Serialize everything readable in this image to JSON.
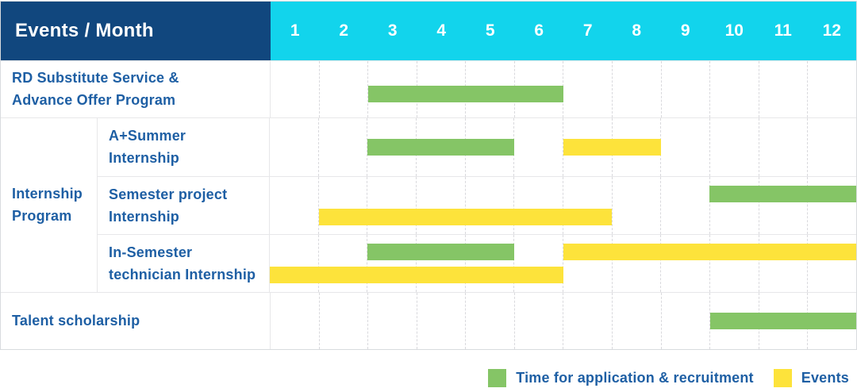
{
  "header": {
    "title": "Events / Month",
    "months": [
      "1",
      "2",
      "3",
      "4",
      "5",
      "6",
      "7",
      "8",
      "9",
      "10",
      "11",
      "12"
    ]
  },
  "group": {
    "label_lines": [
      "Internship",
      "Program"
    ]
  },
  "rows": [
    {
      "name": "rd-substitute-service",
      "label_lines": [
        "RD Substitute Service &",
        "Advance Offer Program"
      ],
      "bars": [
        {
          "color": "green",
          "start": 3,
          "end": 6,
          "lane": "mid-low"
        }
      ]
    },
    {
      "name": "a-plus-summer-internship",
      "label_lines": [
        "A+Summer",
        "Internship"
      ],
      "bars": [
        {
          "color": "green",
          "start": 3,
          "end": 5,
          "lane": "mid"
        },
        {
          "color": "yellow",
          "start": 7,
          "end": 8,
          "lane": "mid"
        }
      ]
    },
    {
      "name": "semester-project-internship",
      "label_lines": [
        "Semester project",
        "Internship"
      ],
      "bars": [
        {
          "color": "green",
          "start": 10,
          "end": 12,
          "lane": "top"
        },
        {
          "color": "yellow",
          "start": 2,
          "end": 7,
          "lane": "bottom"
        }
      ]
    },
    {
      "name": "in-semester-technician-internship",
      "label_lines": [
        "In-Semester",
        "technician Internship"
      ],
      "bars": [
        {
          "color": "green",
          "start": 3,
          "end": 5,
          "lane": "top"
        },
        {
          "color": "yellow",
          "start": 7,
          "end": 12,
          "lane": "top"
        },
        {
          "color": "yellow",
          "start": 1,
          "end": 6,
          "lane": "bottom"
        }
      ]
    },
    {
      "name": "talent-scholarship",
      "label_lines": [
        "Talent scholarship"
      ],
      "bars": [
        {
          "color": "green",
          "start": 10,
          "end": 12,
          "lane": "mid"
        }
      ]
    }
  ],
  "legend": {
    "items": [
      {
        "swatch": "green",
        "label": "Time for application & recruitment"
      },
      {
        "swatch": "yellow",
        "label": "Events"
      }
    ]
  },
  "colors": {
    "navy": "#11477E",
    "cyan": "#12D4EC",
    "green": "#85C566",
    "yellow": "#FDE33B",
    "labelBlue": "#1E5FA4"
  },
  "chart_data": {
    "type": "bar",
    "subtype": "gantt-schedule",
    "title": "Events / Month",
    "x": {
      "label": "Month",
      "ticks": [
        1,
        2,
        3,
        4,
        5,
        6,
        7,
        8,
        9,
        10,
        11,
        12
      ],
      "range": [
        1,
        12
      ]
    },
    "legend": [
      {
        "name": "Time for application & recruitment",
        "color": "#85C566"
      },
      {
        "name": "Events",
        "color": "#FDE33B"
      }
    ],
    "legend_position": "bottom-right",
    "grid": "dashed-vertical-month-lines",
    "rows": [
      {
        "event": "RD Substitute Service & Advance Offer Program",
        "group": null,
        "bars": [
          {
            "series": "Time for application & recruitment",
            "start_month": 3,
            "end_month": 6
          }
        ]
      },
      {
        "event": "A+Summer Internship",
        "group": "Internship Program",
        "bars": [
          {
            "series": "Time for application & recruitment",
            "start_month": 3,
            "end_month": 5
          },
          {
            "series": "Events",
            "start_month": 7,
            "end_month": 8
          }
        ]
      },
      {
        "event": "Semester project Internship",
        "group": "Internship Program",
        "bars": [
          {
            "series": "Time for application & recruitment",
            "start_month": 10,
            "end_month": 12
          },
          {
            "series": "Events",
            "start_month": 2,
            "end_month": 7
          }
        ]
      },
      {
        "event": "In-Semester technician Internship",
        "group": "Internship Program",
        "bars": [
          {
            "series": "Time for application & recruitment",
            "start_month": 3,
            "end_month": 5
          },
          {
            "series": "Events",
            "start_month": 7,
            "end_month": 12
          },
          {
            "series": "Events",
            "start_month": 1,
            "end_month": 6
          }
        ]
      },
      {
        "event": "Talent scholarship",
        "group": null,
        "bars": [
          {
            "series": "Time for application & recruitment",
            "start_month": 10,
            "end_month": 12
          }
        ]
      }
    ]
  }
}
